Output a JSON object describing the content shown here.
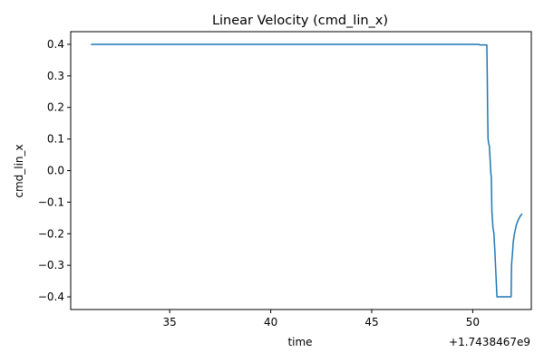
{
  "chart_data": {
    "type": "line",
    "title": "Linear Velocity (cmd_lin_x)",
    "xlabel": "time",
    "ylabel": "cmd_lin_x",
    "x_offset_label": "+1.7438467e9",
    "xlim": [
      30.1,
      52.9
    ],
    "ylim": [
      -0.44,
      0.44
    ],
    "x_ticks": [
      35,
      40,
      45,
      50
    ],
    "x_tick_labels": [
      "35",
      "40",
      "45",
      "50"
    ],
    "y_ticks": [
      -0.4,
      -0.3,
      -0.2,
      -0.1,
      0.0,
      0.1,
      0.2,
      0.3,
      0.4
    ],
    "y_tick_labels": [
      "−0.4",
      "−0.3",
      "−0.2",
      "−0.1",
      "0.0",
      "0.1",
      "0.2",
      "0.3",
      "0.4"
    ],
    "grid": false,
    "line_color": "#1f77b4",
    "series": [
      {
        "x": [
          31.1,
          50.3,
          50.35,
          50.7,
          50.72,
          50.74,
          50.76,
          50.8,
          50.82,
          50.84,
          50.9,
          50.92,
          50.95,
          51.0,
          51.05,
          51.1,
          51.15,
          51.2,
          51.25,
          51.3,
          51.35,
          51.9,
          51.92,
          51.97,
          52.0,
          52.05,
          52.1,
          52.15,
          52.2,
          52.25,
          52.3,
          52.35,
          52.4,
          52.45
        ],
        "y": [
          0.4,
          0.4,
          0.398,
          0.398,
          0.3,
          0.18,
          0.1,
          0.082,
          0.08,
          0.06,
          -0.01,
          -0.02,
          -0.13,
          -0.18,
          -0.2,
          -0.26,
          -0.33,
          -0.4,
          -0.4,
          -0.4,
          -0.4,
          -0.4,
          -0.3,
          -0.26,
          -0.23,
          -0.205,
          -0.19,
          -0.175,
          -0.165,
          -0.157,
          -0.15,
          -0.145,
          -0.14,
          -0.137
        ]
      }
    ]
  }
}
